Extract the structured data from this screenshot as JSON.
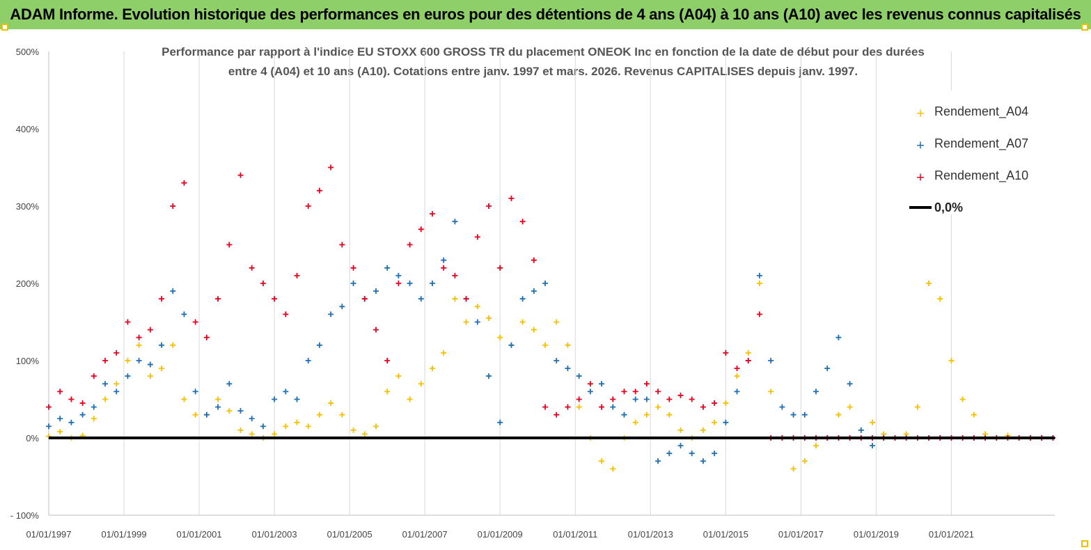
{
  "banner": {
    "title": "ADAM Informe. Evolution historique des performances en euros pour des détentions de 4 ans (A04) à 10 ans (A10) avec les revenus connus capitalisés"
  },
  "colors": {
    "banner": "#8ecf6a",
    "A04": "#f5c000",
    "A07": "#1f6fb5",
    "A10": "#e8001c",
    "zero": "#000000"
  },
  "chart_data": {
    "type": "scatter",
    "subtitle_line1": "Performance par rapport à l'indice EU STOXX 600 GROSS TR  du placement ONEOK Inc en fonction de la date de début pour des durées",
    "subtitle_line2": "entre 4 (A04) et 10 ans (A10). Cotations entre janv. 1997 et mars. 2026. Revenus CAPITALISES depuis janv. 1997.",
    "xlabel": "",
    "ylabel": "",
    "x_domain_years": [
      1997.0,
      2023.75
    ],
    "ylim": [
      -100,
      500
    ],
    "y_ticks": [
      -100,
      0,
      100,
      200,
      300,
      400,
      500
    ],
    "y_tick_labels": [
      "- 100%",
      "0%",
      "100%",
      "200%",
      "300%",
      "400%",
      "500%"
    ],
    "x_ticks": [
      1997,
      1999,
      2001,
      2003,
      2005,
      2007,
      2009,
      2011,
      2013,
      2015,
      2017,
      2019,
      2021
    ],
    "x_tick_labels": [
      "01/01/1997",
      "01/01/1999",
      "01/01/2001",
      "01/01/2003",
      "01/01/2005",
      "01/01/2007",
      "01/01/2009",
      "01/01/2011",
      "01/01/2013",
      "01/01/2015",
      "01/01/2017",
      "01/01/2019",
      "01/01/2021"
    ],
    "legend": [
      "Rendement_A04",
      "Rendement_A07",
      "Rendement_A10",
      "0,0%"
    ],
    "legend_position": "top-right",
    "series": [
      {
        "name": "Rendement_A04",
        "x": [
          1997.0,
          1997.3,
          1997.6,
          1997.9,
          1998.2,
          1998.5,
          1998.8,
          1999.1,
          1999.4,
          1999.7,
          2000.0,
          2000.3,
          2000.6,
          2000.9,
          2001.2,
          2001.5,
          2001.8,
          2002.1,
          2002.4,
          2002.7,
          2003.0,
          2003.3,
          2003.6,
          2003.9,
          2004.2,
          2004.5,
          2004.8,
          2005.1,
          2005.4,
          2005.7,
          2006.0,
          2006.3,
          2006.6,
          2006.9,
          2007.2,
          2007.5,
          2007.8,
          2008.1,
          2008.4,
          2008.7,
          2009.0,
          2009.3,
          2009.6,
          2009.9,
          2010.2,
          2010.5,
          2010.8,
          2011.1,
          2011.4,
          2011.7,
          2012.0,
          2012.3,
          2012.6,
          2012.9,
          2013.2,
          2013.5,
          2013.8,
          2014.1,
          2014.4,
          2014.7,
          2015.0,
          2015.3,
          2015.6,
          2015.9,
          2016.2,
          2016.5,
          2016.8,
          2017.1,
          2017.4,
          2017.7,
          2018.0,
          2018.3,
          2018.6,
          2018.9,
          2019.2,
          2019.5,
          2019.8,
          2020.1,
          2020.4,
          2020.7,
          2021.0,
          2021.3,
          2021.6,
          2021.9,
          2022.2,
          2022.5,
          2022.8,
          2023.1,
          2023.4,
          2023.7
        ],
        "values": [
          2,
          8,
          0,
          3,
          25,
          50,
          70,
          100,
          120,
          80,
          90,
          120,
          50,
          30,
          30,
          50,
          35,
          10,
          5,
          0,
          5,
          15,
          20,
          15,
          30,
          45,
          30,
          10,
          5,
          15,
          60,
          80,
          50,
          70,
          90,
          110,
          180,
          150,
          170,
          155,
          130,
          120,
          150,
          140,
          120,
          150,
          120,
          40,
          0,
          -30,
          -40,
          0,
          20,
          30,
          40,
          30,
          10,
          0,
          10,
          20,
          45,
          80,
          110,
          200,
          60,
          0,
          -40,
          -30,
          -10,
          0,
          30,
          40,
          10,
          20,
          5,
          0,
          5,
          40,
          200,
          180,
          100,
          50,
          30,
          5,
          0,
          3,
          0,
          0,
          0,
          0
        ]
      },
      {
        "name": "Rendement_A07",
        "x": [
          1997.0,
          1997.3,
          1997.6,
          1997.9,
          1998.2,
          1998.5,
          1998.8,
          1999.1,
          1999.4,
          1999.7,
          2000.0,
          2000.3,
          2000.6,
          2000.9,
          2001.2,
          2001.5,
          2001.8,
          2002.1,
          2002.4,
          2002.7,
          2003.0,
          2003.3,
          2003.6,
          2003.9,
          2004.2,
          2004.5,
          2004.8,
          2005.1,
          2005.4,
          2005.7,
          2006.0,
          2006.3,
          2006.6,
          2006.9,
          2007.2,
          2007.5,
          2007.8,
          2008.1,
          2008.4,
          2008.7,
          2009.0,
          2009.3,
          2009.6,
          2009.9,
          2010.2,
          2010.5,
          2010.8,
          2011.1,
          2011.4,
          2011.7,
          2012.0,
          2012.3,
          2012.6,
          2012.9,
          2013.2,
          2013.5,
          2013.8,
          2014.1,
          2014.4,
          2014.7,
          2015.0,
          2015.3,
          2015.6,
          2015.9,
          2016.2,
          2016.5,
          2016.8,
          2017.1,
          2017.4,
          2017.7,
          2018.0,
          2018.3,
          2018.6,
          2018.9,
          2019.2
        ],
        "values": [
          15,
          25,
          20,
          30,
          40,
          70,
          60,
          80,
          100,
          95,
          120,
          190,
          160,
          60,
          30,
          40,
          70,
          35,
          25,
          15,
          50,
          60,
          50,
          100,
          120,
          160,
          170,
          200,
          180,
          190,
          220,
          210,
          200,
          180,
          200,
          230,
          280,
          180,
          150,
          80,
          20,
          120,
          180,
          190,
          200,
          100,
          90,
          80,
          60,
          70,
          40,
          30,
          50,
          50,
          -30,
          -20,
          -10,
          -20,
          -30,
          -20,
          20,
          60,
          100,
          210,
          100,
          40,
          30,
          30,
          60,
          90,
          130,
          70,
          10,
          -10,
          0
        ]
      },
      {
        "name": "Rendement_A10",
        "x": [
          1997.0,
          1997.3,
          1997.6,
          1997.9,
          1998.2,
          1998.5,
          1998.8,
          1999.1,
          1999.4,
          1999.7,
          2000.0,
          2000.3,
          2000.6,
          2000.9,
          2001.2,
          2001.5,
          2001.8,
          2002.1,
          2002.4,
          2002.7,
          2003.0,
          2003.3,
          2003.6,
          2003.9,
          2004.2,
          2004.5,
          2004.8,
          2005.1,
          2005.4,
          2005.7,
          2006.0,
          2006.3,
          2006.6,
          2006.9,
          2007.2,
          2007.5,
          2007.8,
          2008.1,
          2008.4,
          2008.7,
          2009.0,
          2009.3,
          2009.6,
          2009.9,
          2010.2,
          2010.5,
          2010.8,
          2011.1,
          2011.4,
          2011.7,
          2012.0,
          2012.3,
          2012.6,
          2012.9,
          2013.2,
          2013.5,
          2013.8,
          2014.1,
          2014.4,
          2014.7,
          2015.0,
          2015.3,
          2015.6,
          2015.9,
          2016.2,
          2016.5,
          2016.8,
          2017.1,
          2017.4,
          2017.7,
          2018.0,
          2018.3,
          2018.6,
          2018.9,
          2019.2,
          2019.5,
          2019.8,
          2020.1,
          2020.4,
          2020.7,
          2021.0,
          2021.3,
          2021.6,
          2021.9,
          2022.2,
          2022.5,
          2022.8,
          2023.1,
          2023.4,
          2023.7
        ],
        "values": [
          40,
          60,
          50,
          45,
          80,
          100,
          110,
          150,
          130,
          140,
          180,
          300,
          330,
          150,
          130,
          180,
          250,
          340,
          220,
          200,
          180,
          160,
          210,
          300,
          320,
          350,
          250,
          220,
          180,
          140,
          100,
          200,
          250,
          270,
          290,
          220,
          210,
          180,
          260,
          300,
          220,
          310,
          280,
          230,
          40,
          30,
          40,
          50,
          70,
          40,
          50,
          60,
          60,
          70,
          60,
          50,
          55,
          50,
          40,
          45,
          110,
          90,
          100,
          160,
          0,
          0,
          0,
          0,
          0,
          0,
          0,
          0,
          0,
          0,
          0,
          0,
          0,
          0,
          0,
          0,
          0,
          0,
          0,
          0,
          0,
          0,
          0,
          0,
          0,
          0
        ]
      }
    ]
  }
}
